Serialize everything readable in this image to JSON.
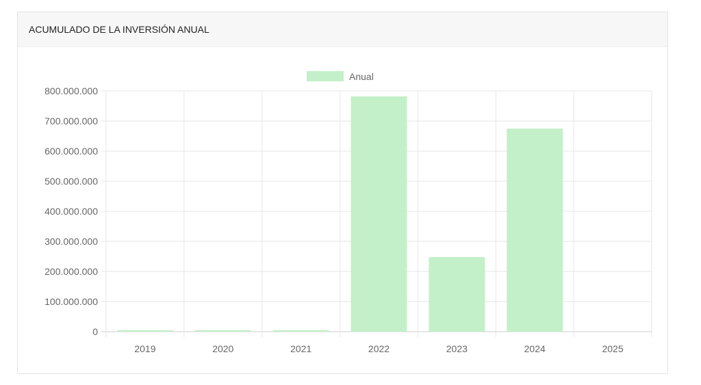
{
  "card": {
    "title": "ACUMULADO DE LA INVERSIÓN ANUAL"
  },
  "chart_data": {
    "type": "bar",
    "title": "",
    "categories": [
      "2019",
      "2020",
      "2021",
      "2022",
      "2023",
      "2024",
      "2025"
    ],
    "series": [
      {
        "name": "Anual",
        "values": [
          5000000,
          5000000,
          5000000,
          782000000,
          248000000,
          675000000,
          0
        ],
        "color": "#c3f0c8"
      }
    ],
    "yticks": [
      "0",
      "100.000.000",
      "200.000.000",
      "300.000.000",
      "400.000.000",
      "500.000.000",
      "600.000.000",
      "700.000.000",
      "800.000.000"
    ],
    "ylim": [
      0,
      800000000
    ],
    "grid": true,
    "legend": "top"
  }
}
